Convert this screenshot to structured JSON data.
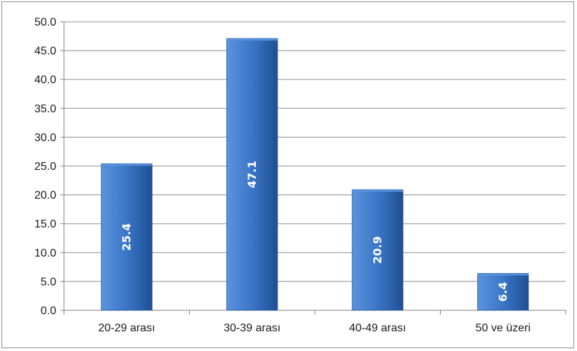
{
  "chart_data": {
    "type": "bar",
    "title": "",
    "xlabel": "",
    "ylabel": "",
    "categories": [
      "20-29 arası",
      "30-39 arası",
      "40-49 arası",
      "50 ve üzeri"
    ],
    "values": [
      25.4,
      47.1,
      20.9,
      6.4
    ],
    "data_labels": [
      "25.4",
      "47.1",
      "20.9",
      "6.4"
    ],
    "ylim": [
      0,
      50
    ],
    "y_ticks": [
      0,
      5,
      10,
      15,
      20,
      25,
      30,
      35,
      40,
      45,
      50
    ],
    "y_tick_labels": [
      "0.0",
      "5.0",
      "10.0",
      "15.0",
      "20.0",
      "25.0",
      "30.0",
      "35.0",
      "40.0",
      "45.0",
      "50.0"
    ],
    "grid": true,
    "legend": "none",
    "colors": {
      "bar_light": "#5b93dc",
      "bar_main": "#3a76c7",
      "bar_dark": "#1f4f94",
      "grid": "#8c8c8c",
      "axis": "#7f7f7f",
      "data_label": "#ffffff"
    }
  }
}
